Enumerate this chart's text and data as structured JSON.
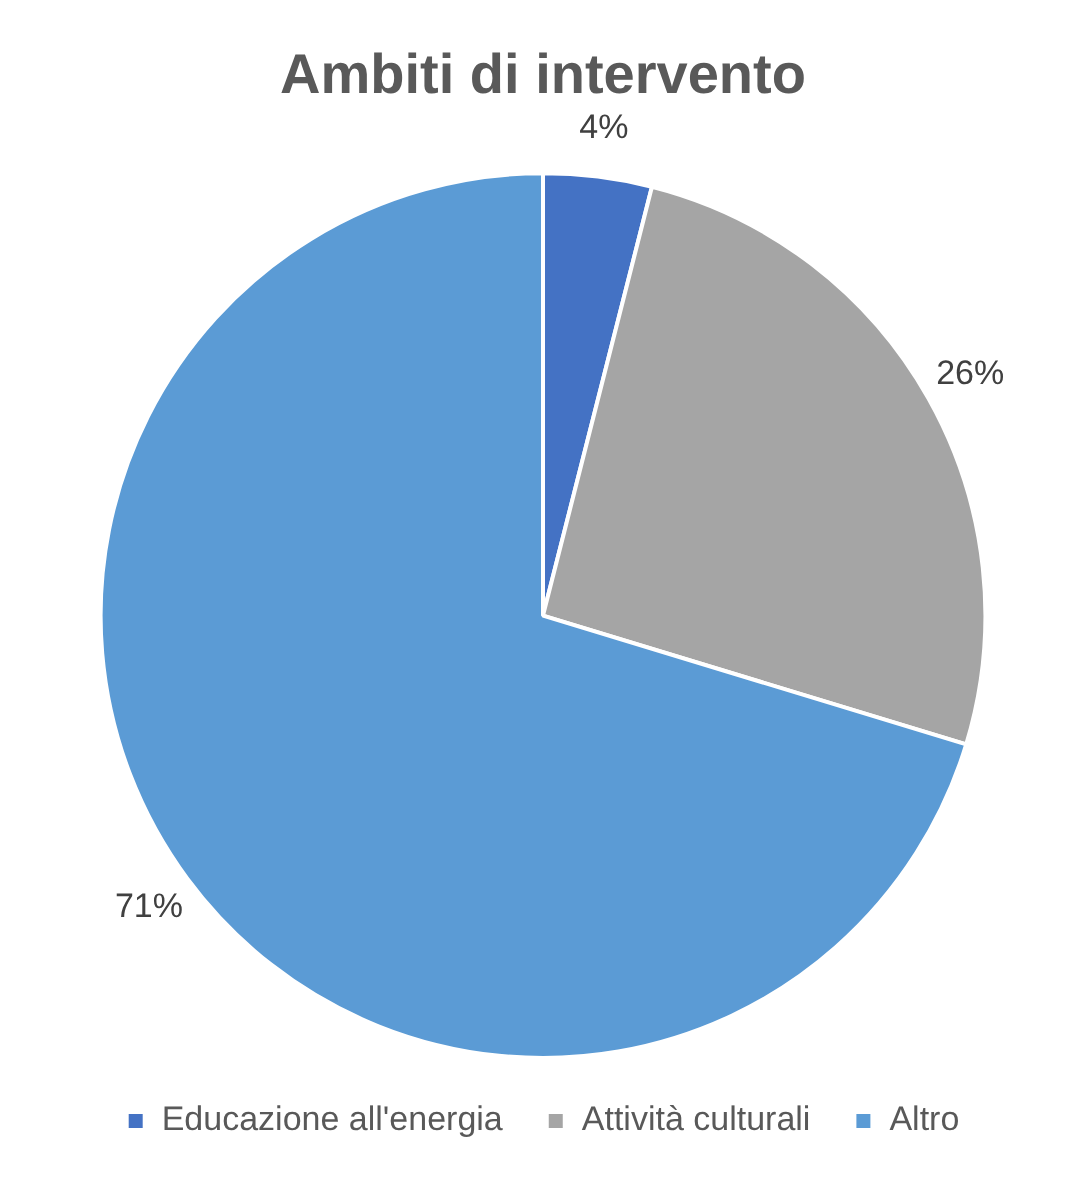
{
  "chart_data": {
    "type": "pie",
    "title": "Ambiti di intervento",
    "categories": [
      "Educazione all'energia",
      "Attività culturali",
      "Altro"
    ],
    "values": [
      4,
      26,
      71
    ],
    "colors": [
      "#4472c4",
      "#a5a5a5",
      "#5b9bd5"
    ],
    "value_labels": [
      "4%",
      "26%",
      "71%"
    ],
    "legend": "bottom"
  }
}
